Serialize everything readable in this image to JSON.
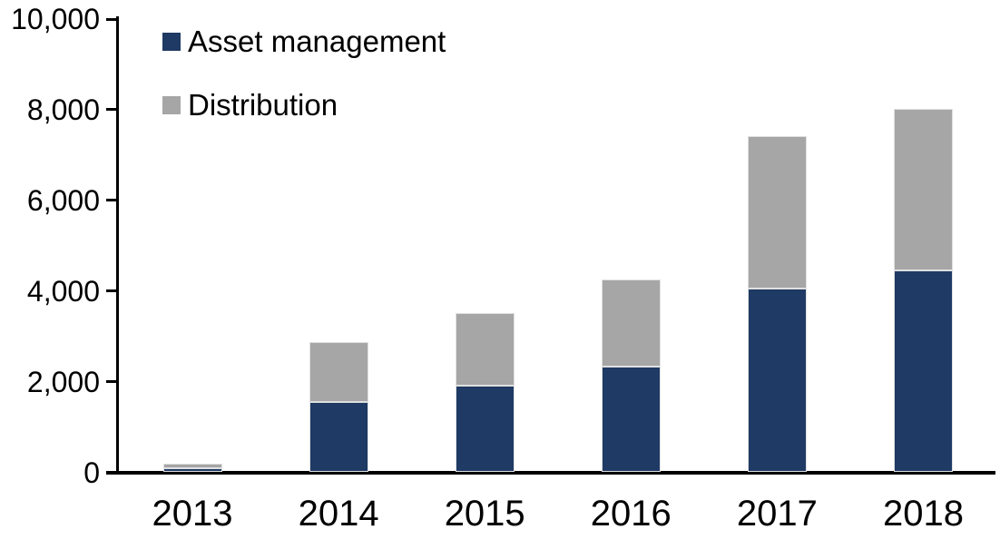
{
  "chart_data": {
    "type": "bar",
    "stacked": true,
    "title": "",
    "categories": [
      "2013",
      "2014",
      "2015",
      "2016",
      "2017",
      "2018"
    ],
    "series": [
      {
        "name": "Asset management",
        "color": "#1f3a64",
        "values": [
          80,
          1550,
          1900,
          2320,
          4050,
          4440
        ]
      },
      {
        "name": "Distribution",
        "color": "#a6a6a6",
        "values": [
          100,
          1320,
          1600,
          1930,
          3350,
          3560
        ]
      }
    ],
    "totals": [
      180,
      2870,
      3500,
      4250,
      7400,
      8000
    ],
    "xlabel": "",
    "ylabel": "",
    "ylim": [
      0,
      10000
    ],
    "ytick_values": [
      0,
      2000,
      4000,
      6000,
      8000,
      10000
    ],
    "ytick_labels": [
      "0",
      "2,000",
      "4,000",
      "6,000",
      "8,000",
      "10,000"
    ],
    "legend_position": "top-left",
    "grid": false,
    "axis_color": "#000000",
    "background_color": "#ffffff",
    "bar_border_color": "#e0e0e0"
  }
}
